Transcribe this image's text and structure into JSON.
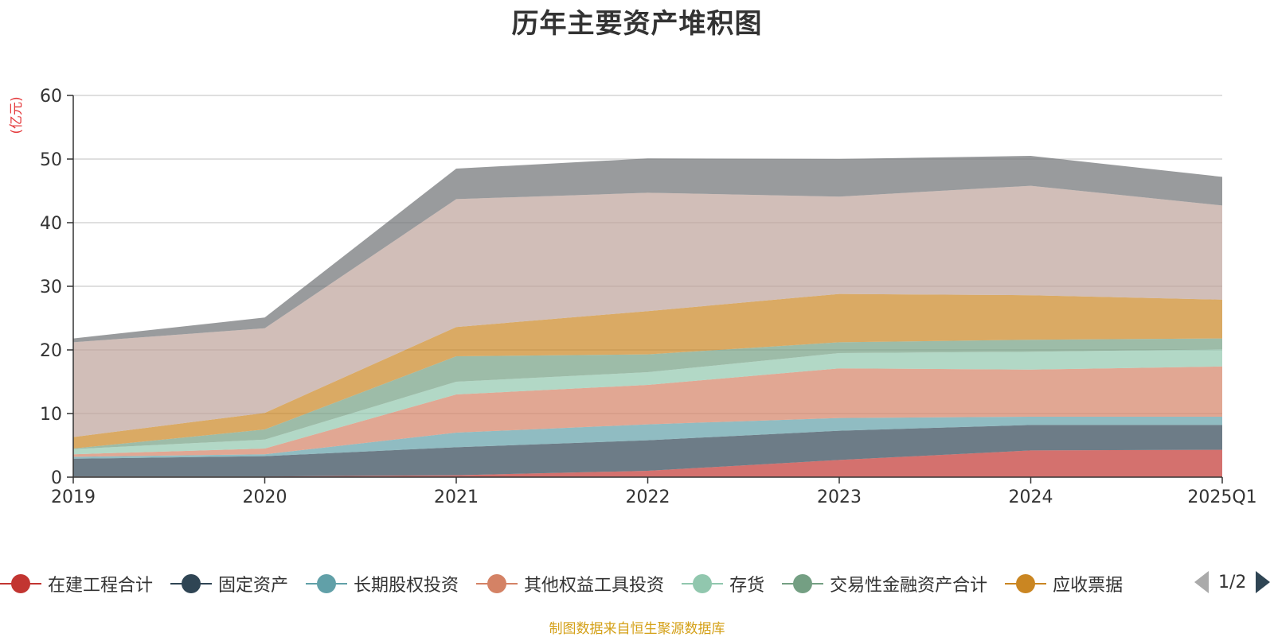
{
  "chart_data": {
    "type": "area",
    "stacked": true,
    "title": "历年主要资产堆积图",
    "ylabel": "(亿元)",
    "xlabel": "",
    "ylim": [
      0,
      60
    ],
    "yticks": [
      "0",
      "10",
      "20",
      "30",
      "40",
      "50",
      "60"
    ],
    "categories": [
      "2019",
      "2020",
      "2021",
      "2022",
      "2023",
      "2024",
      "2025Q1"
    ],
    "grid": true,
    "legend_position": "bottom",
    "series": [
      {
        "name": "在建工程合计",
        "color": "#c23531",
        "values": [
          0.1,
          0.1,
          0.3,
          1.0,
          2.7,
          4.2,
          4.3
        ]
      },
      {
        "name": "固定资产",
        "color": "#2f4554",
        "values": [
          2.8,
          3.2,
          4.4,
          4.8,
          4.6,
          4.0,
          3.9
        ]
      },
      {
        "name": "长期股权投资",
        "color": "#61a0a8",
        "values": [
          0.3,
          0.3,
          2.3,
          2.5,
          2.0,
          1.3,
          1.3
        ]
      },
      {
        "name": "其他权益工具投资",
        "color": "#d48265",
        "values": [
          0.4,
          0.9,
          6.0,
          6.2,
          7.8,
          7.4,
          7.9
        ]
      },
      {
        "name": "存货",
        "color": "#91c7ae",
        "values": [
          0.8,
          1.4,
          2.0,
          2.0,
          2.4,
          2.8,
          2.7
        ]
      },
      {
        "name": "交易性金融资产合计",
        "color": "#749f83",
        "values": [
          0.1,
          1.6,
          4.0,
          2.8,
          1.7,
          1.9,
          1.7
        ]
      },
      {
        "name": "应收票据",
        "color": "#ca8622",
        "values": [
          1.8,
          2.6,
          4.6,
          6.8,
          7.6,
          7.0,
          6.1
        ]
      },
      {
        "name": "",
        "color": "#bda29a",
        "values": [
          14.9,
          13.3,
          20.1,
          18.6,
          15.3,
          17.2,
          14.8
        ]
      },
      {
        "name": "",
        "color": "#6e7074",
        "values": [
          0.6,
          1.7,
          4.8,
          5.4,
          5.9,
          4.7,
          4.5
        ]
      }
    ]
  },
  "legend": {
    "page_label": "1/2"
  },
  "footer": {
    "source": "制图数据来自恒生聚源数据库"
  }
}
